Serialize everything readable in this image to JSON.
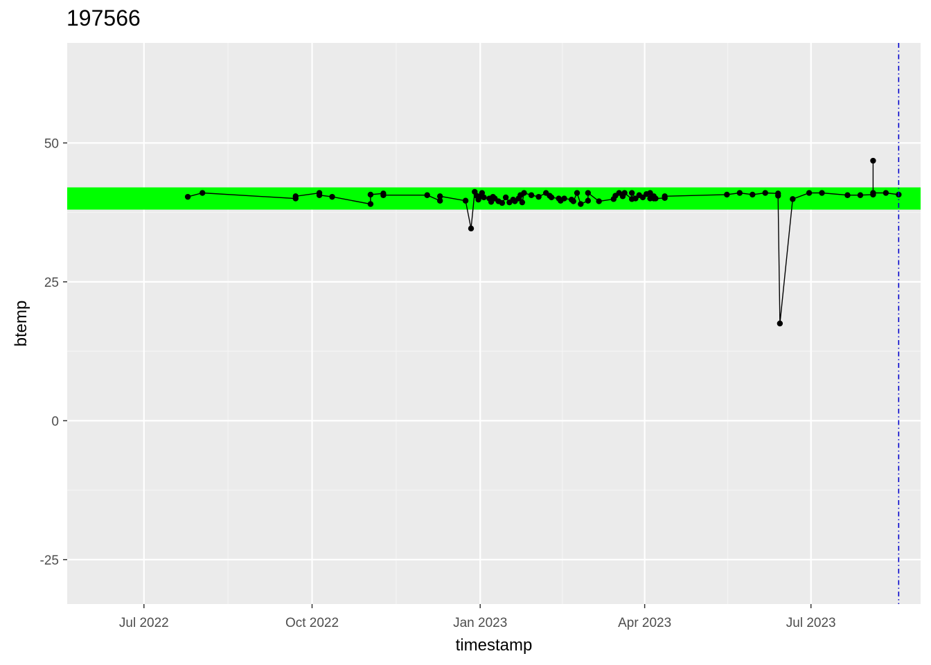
{
  "chart_data": {
    "type": "line",
    "title": "197566",
    "xlabel": "timestamp",
    "ylabel": "btemp",
    "x_ticks": [
      "Jul 2022",
      "Oct 2022",
      "Jan 2023",
      "Apr 2023",
      "Jul 2023"
    ],
    "x_tick_dates": [
      "2022-07-01",
      "2022-10-01",
      "2023-01-01",
      "2023-04-01",
      "2023-07-01"
    ],
    "xlim": [
      "2022-05-20",
      "2023-08-30"
    ],
    "y_ticks": [
      50,
      25,
      0,
      -25
    ],
    "ylim": [
      -33,
      68
    ],
    "grid": true,
    "band": {
      "ymin": 38,
      "ymax": 42,
      "color": "#00ff00"
    },
    "vline": {
      "x": "2023-08-18",
      "color": "#0000cd",
      "style": "dotdash"
    },
    "colors": {
      "panel": "#ebebeb",
      "grid_major": "#ffffff",
      "grid_minor": "#f5f5f5",
      "series": "#000000"
    },
    "series": [
      {
        "points": [
          [
            "2022-07-25",
            40.3
          ],
          [
            "2022-08-02",
            41.0
          ],
          [
            "2022-09-22",
            40.0
          ],
          [
            "2022-09-22",
            40.4
          ],
          [
            "2022-10-05",
            41.0
          ],
          [
            "2022-10-05",
            40.6
          ],
          [
            "2022-10-12",
            40.3
          ],
          [
            "2022-11-02",
            39.0
          ],
          [
            "2022-11-02",
            40.7
          ],
          [
            "2022-11-09",
            40.9
          ],
          [
            "2022-11-09",
            40.6
          ],
          [
            "2022-12-03",
            40.6
          ],
          [
            "2022-12-10",
            39.6
          ],
          [
            "2022-12-10",
            40.4
          ],
          [
            "2022-12-24",
            39.6
          ],
          [
            "2022-12-27",
            34.6
          ],
          [
            "2022-12-29",
            41.2
          ],
          [
            "2022-12-30",
            40.5
          ],
          [
            "2022-12-31",
            39.8
          ],
          [
            "2023-01-01",
            40.4
          ],
          [
            "2023-01-02",
            41.0
          ],
          [
            "2023-01-03",
            40.2
          ],
          [
            "2023-01-06",
            40.0
          ],
          [
            "2023-01-07",
            39.4
          ],
          [
            "2023-01-08",
            40.3
          ],
          [
            "2023-01-09",
            40.0
          ],
          [
            "2023-01-11",
            39.5
          ],
          [
            "2023-01-13",
            39.2
          ],
          [
            "2023-01-15",
            40.2
          ],
          [
            "2023-01-17",
            39.3
          ],
          [
            "2023-01-19",
            39.8
          ],
          [
            "2023-01-20",
            39.5
          ],
          [
            "2023-01-22",
            40.0
          ],
          [
            "2023-01-23",
            40.6
          ],
          [
            "2023-01-24",
            39.3
          ],
          [
            "2023-01-25",
            41.0
          ],
          [
            "2023-01-29",
            40.6
          ],
          [
            "2023-02-02",
            40.3
          ],
          [
            "2023-02-06",
            41.0
          ],
          [
            "2023-02-08",
            40.5
          ],
          [
            "2023-02-09",
            40.2
          ],
          [
            "2023-02-13",
            40.0
          ],
          [
            "2023-02-14",
            39.6
          ],
          [
            "2023-02-16",
            40.0
          ],
          [
            "2023-02-20",
            39.8
          ],
          [
            "2023-02-21",
            39.5
          ],
          [
            "2023-02-23",
            41.0
          ],
          [
            "2023-02-25",
            39.0
          ],
          [
            "2023-03-01",
            39.6
          ],
          [
            "2023-03-01",
            41.0
          ],
          [
            "2023-03-07",
            39.5
          ],
          [
            "2023-03-15",
            39.9
          ],
          [
            "2023-03-16",
            40.5
          ],
          [
            "2023-03-18",
            41.0
          ],
          [
            "2023-03-20",
            40.4
          ],
          [
            "2023-03-21",
            41.0
          ],
          [
            "2023-03-25",
            39.9
          ],
          [
            "2023-03-25",
            41.0
          ],
          [
            "2023-03-27",
            40.0
          ],
          [
            "2023-03-29",
            40.6
          ],
          [
            "2023-03-31",
            40.2
          ],
          [
            "2023-04-02",
            40.8
          ],
          [
            "2023-04-04",
            40.0
          ],
          [
            "2023-04-04",
            41.0
          ],
          [
            "2023-04-06",
            40.0
          ],
          [
            "2023-04-06",
            40.4
          ],
          [
            "2023-04-07",
            40.0
          ],
          [
            "2023-04-12",
            40.1
          ],
          [
            "2023-04-12",
            40.4
          ],
          [
            "2023-05-16",
            40.7
          ],
          [
            "2023-05-23",
            41.0
          ],
          [
            "2023-05-30",
            40.7
          ],
          [
            "2023-06-06",
            41.0
          ],
          [
            "2023-06-13",
            40.9
          ],
          [
            "2023-06-13",
            40.5
          ],
          [
            "2023-06-14",
            17.5
          ],
          [
            "2023-06-21",
            39.9
          ],
          [
            "2023-06-30",
            41.0
          ],
          [
            "2023-07-07",
            41.0
          ],
          [
            "2023-07-21",
            40.6
          ],
          [
            "2023-07-28",
            40.6
          ],
          [
            "2023-08-04",
            40.7
          ],
          [
            "2023-08-04",
            46.8
          ],
          [
            "2023-08-04",
            41.0
          ],
          [
            "2023-08-11",
            41.0
          ],
          [
            "2023-08-18",
            40.7
          ]
        ]
      }
    ]
  }
}
